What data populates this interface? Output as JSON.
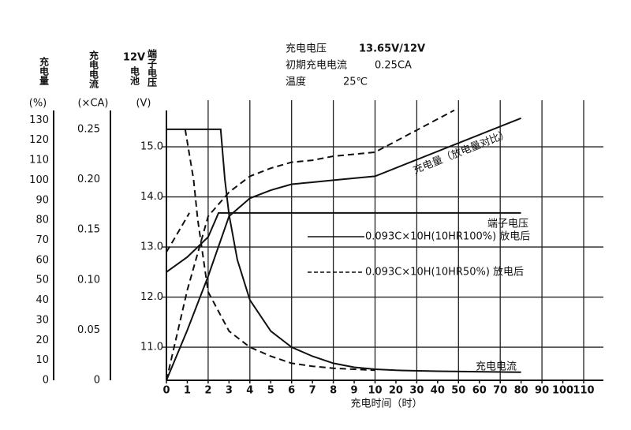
{
  "chart_data": {
    "type": "line",
    "header": [
      [
        "充电电压",
        "13.65V/12V"
      ],
      [
        "初期充电电流",
        "0.25CA"
      ],
      [
        "温度",
        "25℃"
      ]
    ],
    "x_title": "充电时间（时）",
    "xticks": [
      0,
      1,
      2,
      3,
      4,
      5,
      6,
      7,
      8,
      9,
      10,
      20,
      30,
      40,
      50,
      60,
      70,
      80,
      90,
      100,
      110
    ],
    "xlim": [
      0,
      110
    ],
    "xgrid": [
      2,
      4,
      6,
      8,
      10,
      30,
      50,
      70,
      90,
      110
    ],
    "y_title": "充电量",
    "y_unit": "(%)",
    "ylim": [
      0,
      140
    ],
    "yticks": [
      0,
      10,
      20,
      30,
      40,
      50,
      60,
      70,
      80,
      90,
      100,
      110,
      120,
      130
    ],
    "y2_title": "充电电流",
    "y2_unit": "(×CA)",
    "y2lim": [
      0,
      0.279
    ],
    "y2ticks": [
      0,
      0.05,
      {
        "value": 0.1,
        "label": "0.10"
      },
      0.15,
      {
        "value": 0.2,
        "label": "0.20"
      },
      0.25
    ],
    "y3_title": [
      "12V",
      "电池",
      "端子电压"
    ],
    "y3_unit": "(V)",
    "y3lim": [
      10.34,
      15.93
    ],
    "y3ticks": [
      {
        "value": 11,
        "label": "11.0"
      },
      {
        "value": 12,
        "label": "12.0"
      },
      {
        "value": 13,
        "label": "13.0"
      },
      {
        "value": 14,
        "label": "14.0"
      },
      {
        "value": 15,
        "label": "15.0"
      }
    ],
    "color": "#111111",
    "legend": [
      {
        "dash": false,
        "label": "0.093C×10H(10HR100%) 放电后"
      },
      {
        "dash": true,
        "label": "0.093C×10H(10HR50%) 放电后"
      }
    ],
    "annotations": [
      "充电量（放电量对比）",
      "端子电压",
      "充电电流"
    ],
    "series": [
      {
        "axis": "y",
        "dash": false,
        "x": [
          0,
          1,
          2,
          3,
          4,
          5,
          6,
          7,
          8,
          9,
          10,
          80
        ],
        "values": [
          0,
          25,
          52,
          82,
          91,
          95,
          98,
          99,
          100,
          101,
          102,
          131
        ]
      },
      {
        "axis": "y",
        "dash": true,
        "x": [
          0,
          1,
          2,
          3,
          4,
          5,
          6,
          7,
          8,
          9,
          10,
          48
        ],
        "values": [
          0,
          45,
          82,
          94,
          102,
          106,
          109,
          110,
          112,
          113,
          114,
          135
        ]
      },
      {
        "axis": "y3",
        "dash": false,
        "x": [
          0,
          1,
          2,
          2.5,
          80
        ],
        "values": [
          12.5,
          12.8,
          13.2,
          13.68,
          13.68
        ]
      },
      {
        "axis": "y3",
        "dash": true,
        "x": [
          0,
          0.5,
          1.1
        ],
        "values": [
          12.9,
          13.25,
          13.68
        ]
      },
      {
        "axis": "y2",
        "dash": false,
        "x": [
          0,
          2.6,
          2.8,
          3,
          3.4,
          4,
          5,
          6,
          7,
          8,
          9,
          10,
          20,
          40,
          80
        ],
        "values": [
          0.25,
          0.25,
          0.2,
          0.165,
          0.12,
          0.08,
          0.049,
          0.033,
          0.024,
          0.017,
          0.013,
          0.011,
          0.01,
          0.009,
          0.008
        ]
      },
      {
        "axis": "y2",
        "dash": true,
        "x": [
          0.9,
          1.3,
          1.5,
          2,
          3,
          4,
          5,
          6,
          7,
          8,
          9,
          10
        ],
        "values": [
          0.25,
          0.2,
          0.16,
          0.088,
          0.049,
          0.033,
          0.024,
          0.017,
          0.014,
          0.012,
          0.011,
          0.01
        ]
      }
    ]
  }
}
